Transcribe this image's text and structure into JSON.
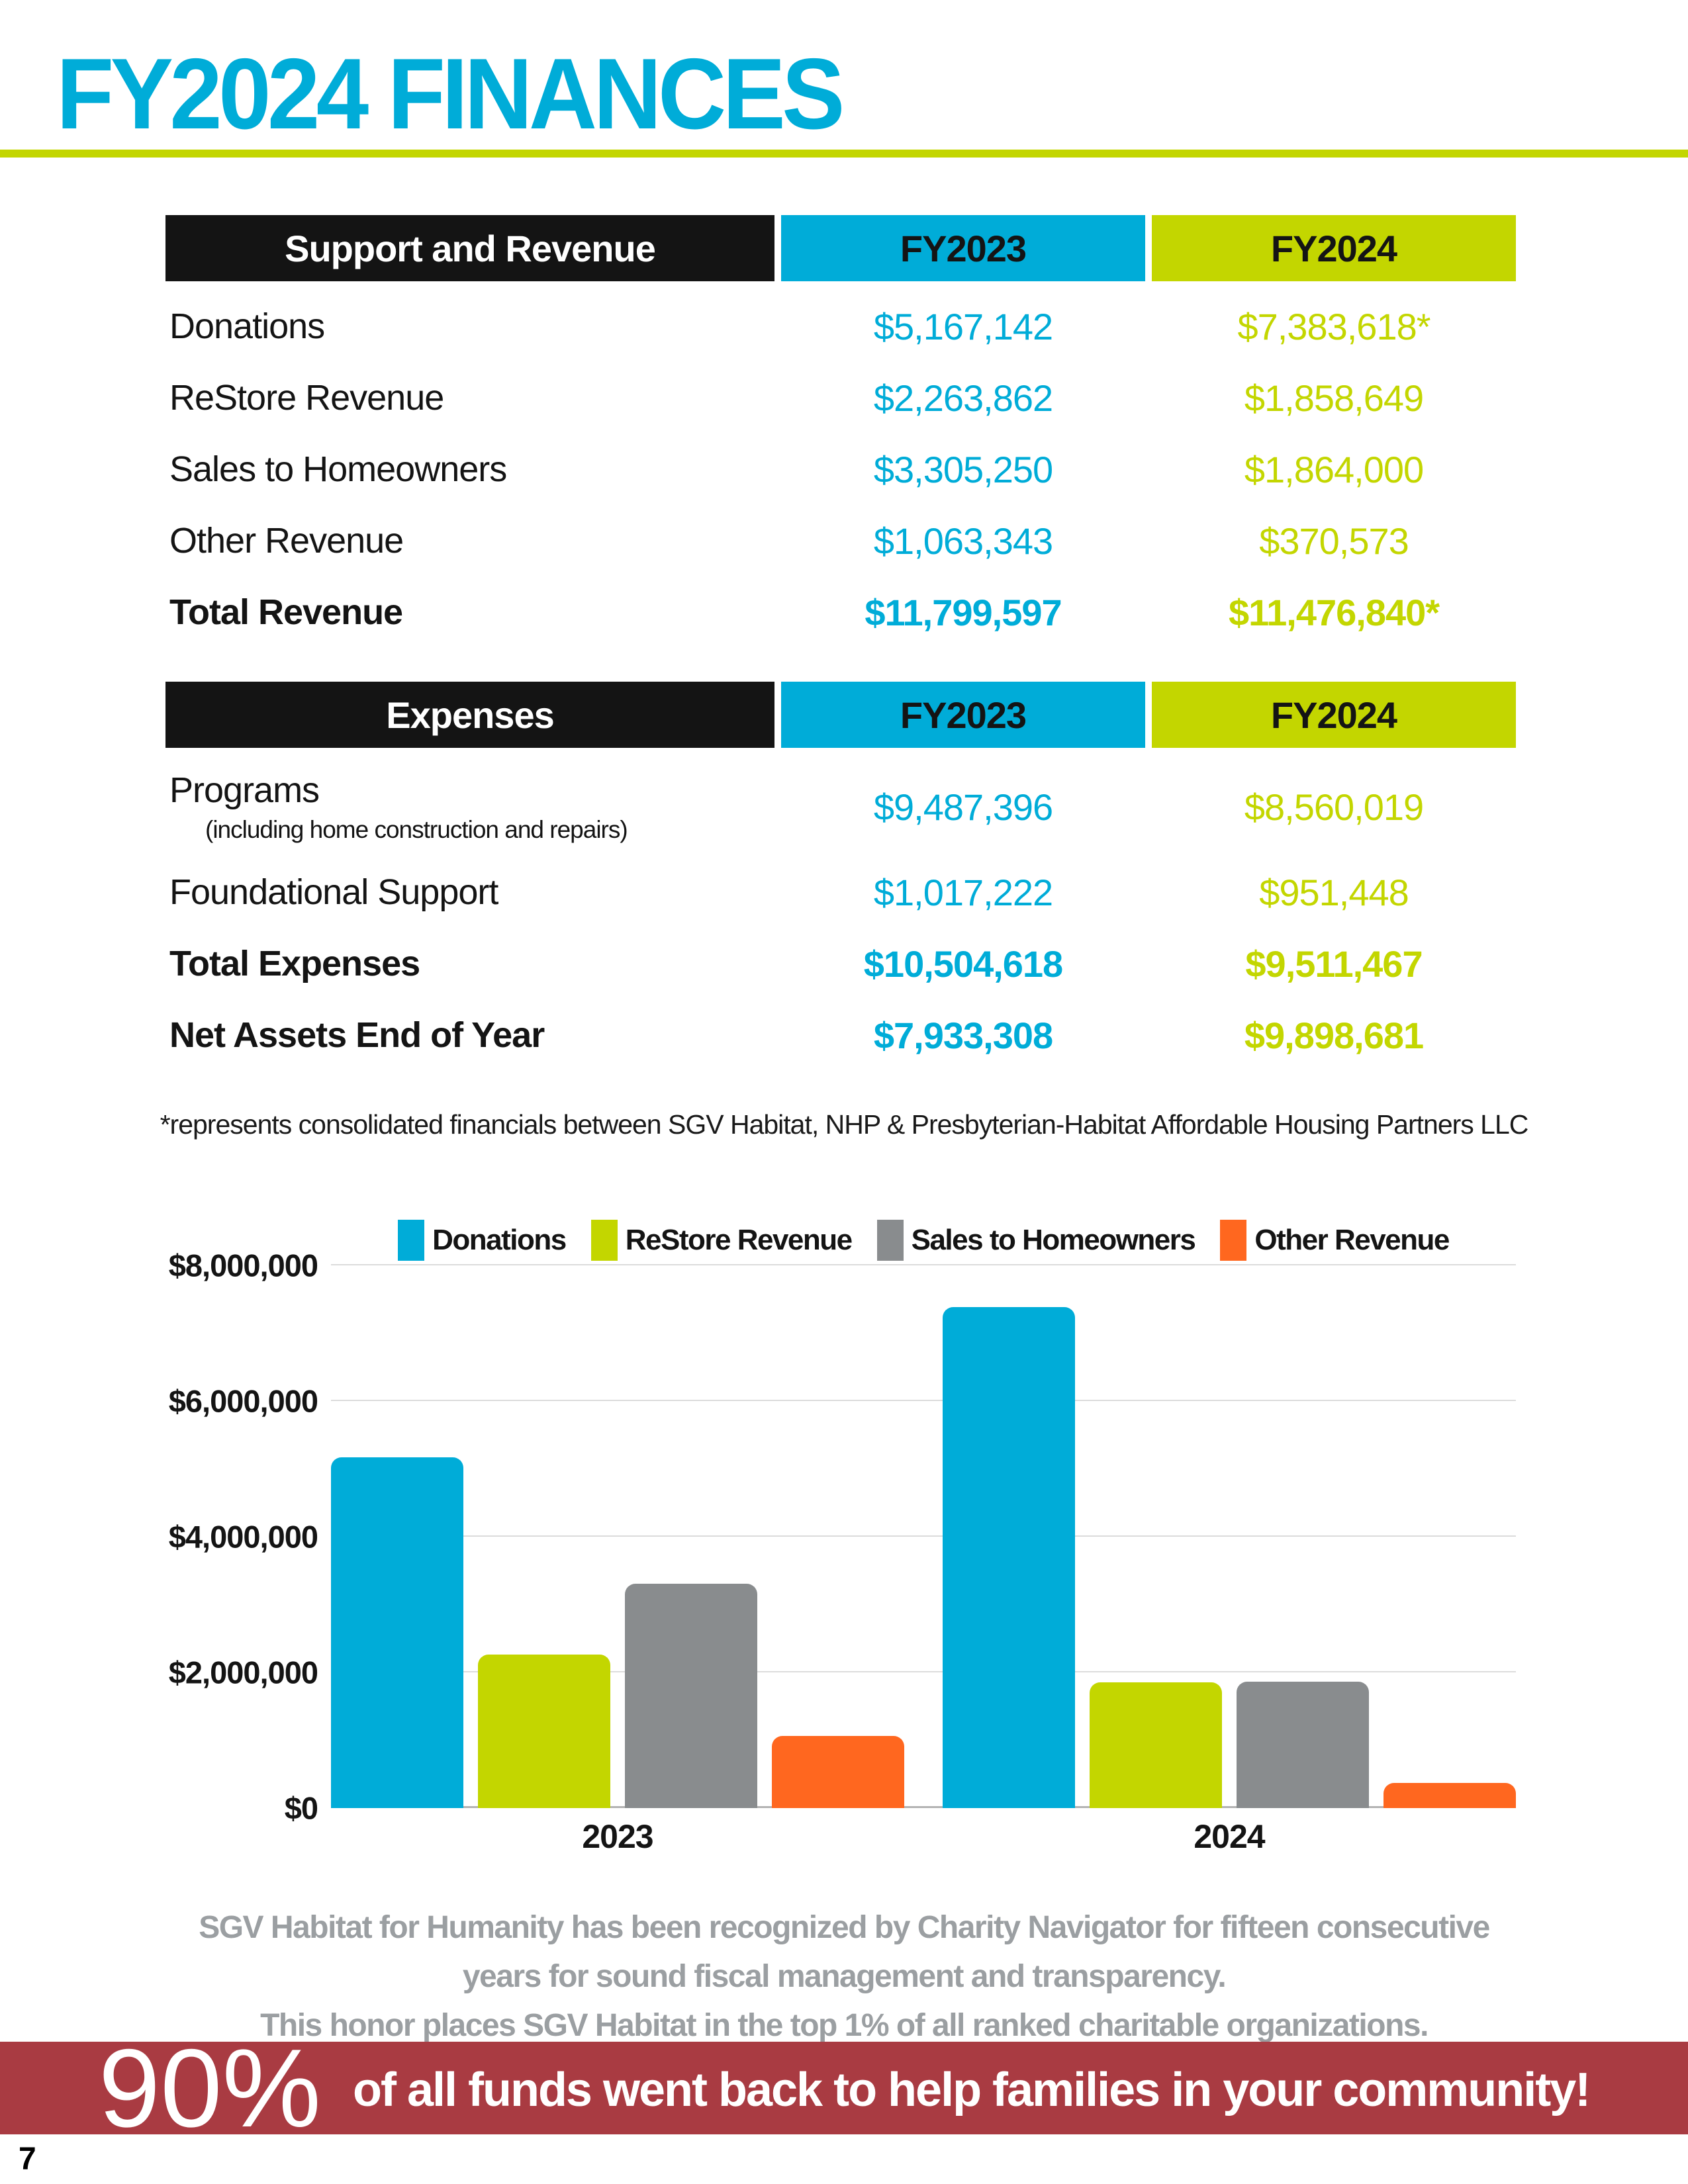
{
  "page": {
    "title": "FY2024 FINANCES",
    "page_number": "7",
    "footnote": "*represents consolidated financials between SGV Habitat, NHP & Presbyterian-Habitat Affordable Housing Partners LLC",
    "recognition": {
      "line1": "SGV Habitat for Humanity has been recognized by Charity Navigator for fifteen consecutive",
      "line2": "years for sound fiscal management and transparency.",
      "line3": "This honor places SGV Habitat in the top 1% of all ranked charitable organizations."
    },
    "banner": {
      "stat": "90%",
      "message": "of all funds went back to help families in your community!"
    }
  },
  "colors": {
    "cyan": "#00ACD8",
    "lime": "#C3D600",
    "gray_bar": "#898C8E",
    "orange": "#FF671F",
    "black": "#141414",
    "banner_red": "#A93B42",
    "gray_text": "#9B9FA2"
  },
  "revenue_table": {
    "header": {
      "label": "Support and Revenue",
      "col1": "FY2023",
      "col2": "FY2024"
    },
    "rows": [
      {
        "label": "Donations",
        "fy2023": "$5,167,142",
        "fy2024": "$7,383,618*"
      },
      {
        "label": "ReStore Revenue",
        "fy2023": "$2,263,862",
        "fy2024": "$1,858,649"
      },
      {
        "label": "Sales to Homeowners",
        "fy2023": "$3,305,250",
        "fy2024": "$1,864,000"
      },
      {
        "label": "Other Revenue",
        "fy2023": "$1,063,343",
        "fy2024": "$370,573"
      },
      {
        "label": "Total Revenue",
        "fy2023": "$11,799,597",
        "fy2024": "$11,476,840*"
      }
    ]
  },
  "expenses_table": {
    "header": {
      "label": "Expenses",
      "col1": "FY2023",
      "col2": "FY2024"
    },
    "rows": [
      {
        "label": "Programs",
        "sublabel": "(including home construction and repairs)",
        "fy2023": "$9,487,396",
        "fy2024": "$8,560,019"
      },
      {
        "label": "Foundational Support",
        "fy2023": "$1,017,222",
        "fy2024": "$951,448"
      },
      {
        "label": "Total Expenses",
        "fy2023": "$10,504,618",
        "fy2024": "$9,511,467"
      },
      {
        "label": "Net Assets End of Year",
        "fy2023": "$7,933,308",
        "fy2024": "$9,898,681"
      }
    ]
  },
  "chart_data": {
    "type": "bar",
    "categories": [
      "2023",
      "2024"
    ],
    "series": [
      {
        "name": "Donations",
        "color": "#00ACD8",
        "values": [
          5167142,
          7383618
        ]
      },
      {
        "name": "ReStore Revenue",
        "color": "#C3D600",
        "values": [
          2263862,
          1858649
        ]
      },
      {
        "name": "Sales to Homeowners",
        "color": "#898C8E",
        "values": [
          3305250,
          1864000
        ]
      },
      {
        "name": "Other Revenue",
        "color": "#FF671F",
        "values": [
          1063343,
          370573
        ]
      }
    ],
    "ylim": [
      0,
      8000000
    ],
    "yticks": [
      {
        "label": "$8,000,000",
        "value": 8000000
      },
      {
        "label": "$6,000,000",
        "value": 6000000
      },
      {
        "label": "$4,000,000",
        "value": 4000000
      },
      {
        "label": "$2,000,000",
        "value": 2000000
      },
      {
        "label": "$0",
        "value": 0
      }
    ],
    "grid": true,
    "legend_position": "top"
  }
}
